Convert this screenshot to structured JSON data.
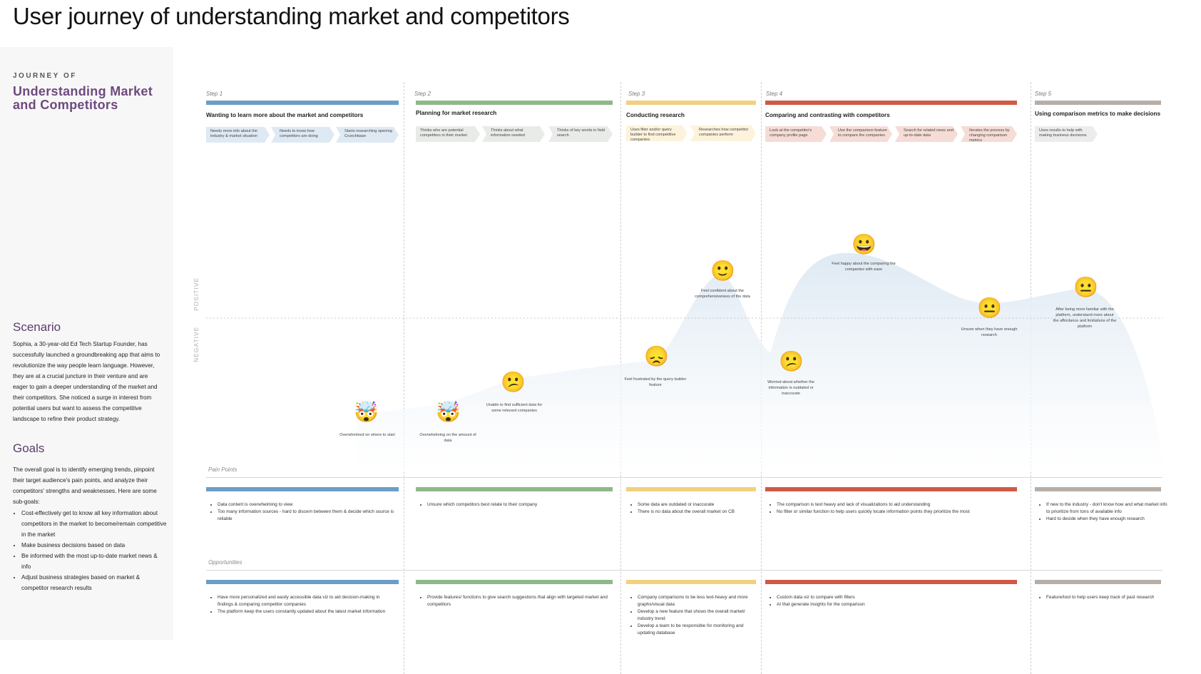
{
  "page": {
    "title": "User journey of understanding market and competitors"
  },
  "sidebar": {
    "eyebrow": "JOURNEY OF",
    "journey_name": "Understanding Market and Competitors",
    "scenario_heading": "Scenario",
    "scenario_text": "Sophia, a 30-year-old Ed Tech Startup Founder, has successfully launched a groundbreaking app that aims to revolutionize the way people learn language. However, they are at a crucial juncture in their venture and are eager to gain a deeper understanding of the market and their competitors. She noticed a surge in interest from potential users but want to assess the competitive landscape to refine their product strategy.",
    "goals_heading": "Goals",
    "goals_text": "The overall goal is to identify emerging trends, pinpoint their target audience's pain points, and analyze their competitors' strengths and weaknesses. Here are some sub-goals:",
    "goals": [
      "Cost-effectively get to know all key information about competitors in the market to become/remain competitive in the market",
      "Make business decisions based on data",
      "Be informed with the most up-to-date market news & info",
      "Adjust business strategies based on market & competitor research results"
    ]
  },
  "axis": {
    "positive": "POSITIVE",
    "negative": "NEGATIVE"
  },
  "labels": {
    "pain_points": "Pain Points",
    "opportunities": "Opportunities"
  },
  "steps": [
    {
      "num": "Step 1",
      "title": "Wanting to learn more about the market and competitors",
      "color": "#6b9ec7",
      "chip_color": "#dfe9f3",
      "actions": [
        "Needs more info about the industry & market situation",
        "Needs to know how competitors are doing",
        "Starts researching opening Crunchbase"
      ],
      "pain_points": [
        "Data content is overwhelming to view",
        "Too many information sources - hard to discern between them & decide which source is reliable"
      ],
      "opportunities": [
        "Have more personalized and easily accessible data viz to aid decision-making in findings & comparing competitor companies",
        "The platform keep the users constantly updated about the latest market information"
      ]
    },
    {
      "num": "Step 2",
      "title": "Planning for market research",
      "color": "#8fb88a",
      "chip_color": "#e9ebe9",
      "actions": [
        "Thinks who are potential competitors in their market",
        "Thinks about what information needed",
        "Thinks of key words in field search"
      ],
      "pain_points": [
        "Unsure which competitors best relate to their company"
      ],
      "opportunities": [
        "Provide features/ functions to give search suggestions that align with targeted market and competitors"
      ]
    },
    {
      "num": "Step 3",
      "title": "Conducting research",
      "color": "#f1d17f",
      "chip_color": "#fdf3dc",
      "actions": [
        "Uses filter and/or query builder to find competitive companies",
        "Researches how competitor companies perform"
      ],
      "pain_points": [
        "Some data are outdated or inaccurate",
        "There is no data about the overall market on CB"
      ],
      "opportunities": [
        "Company comparisons to be less text-heavy and more graphs/visual data",
        "Develop a new feature that shows the overall market/ industry trend",
        "Develop a team to be responsible for monitoring and updating database"
      ]
    },
    {
      "num": "Step 4",
      "title": "Comparing and contrasting with competitors",
      "color": "#cf5a45",
      "chip_color": "#f6dcd6",
      "actions": [
        "Look at the competitor's company profile page",
        "Use the comparison feature to compare the companies",
        "Search for related news and up-to-date data",
        "Iterates the process by changing comparison metrics"
      ],
      "pain_points": [
        "The comparison is text heavy and lack of visualizations to aid understanding",
        "No filter or similar function to help users quickly locate information points they prioritize the most"
      ],
      "opportunities": [
        "Custom data viz to compare with filters",
        "AI that generate insights for the comparison"
      ]
    },
    {
      "num": "Step 5",
      "title": "Using comparison metrics to make decisions",
      "color": "#b7aea7",
      "chip_color": "#ececec",
      "actions": [
        "Uses results to help with making business decisions"
      ],
      "pain_points": [
        "If new to the industry - don't know how and what market info to prioritize from tons of available info",
        "Hard to decide when they have enough research"
      ],
      "opportunities": [
        "Feature/tool to help users keep track of past research"
      ]
    }
  ],
  "emotions": [
    {
      "emoji": "🤯",
      "label": "Overwhelmed on where to start",
      "sentiment": -0.85
    },
    {
      "emoji": "🤯",
      "label": "Overwhelming on the amount of data",
      "sentiment": -0.85
    },
    {
      "emoji": "😕",
      "label": "Unable to find sufficient data for some relevant companies",
      "sentiment": -0.65
    },
    {
      "emoji": "😞",
      "label": "Feel frustrated by the query builder feature",
      "sentiment": -0.4
    },
    {
      "emoji": "🙂",
      "label": "Feel confident about the comprehensiveness of the data",
      "sentiment": 0.45
    },
    {
      "emoji": "😕",
      "label": "Worried about whether the information is outdated or inaccurate",
      "sentiment": -0.45
    },
    {
      "emoji": "😀",
      "label": "Feel happy about the comparing the companies with ease",
      "sentiment": 0.75
    },
    {
      "emoji": "😐",
      "label": "Unsure when they have enough research",
      "sentiment": 0.1
    },
    {
      "emoji": "😐",
      "label": "After being more familiar with the platform, understand more about the affordance and limitations of the platform",
      "sentiment": 0.3
    }
  ]
}
